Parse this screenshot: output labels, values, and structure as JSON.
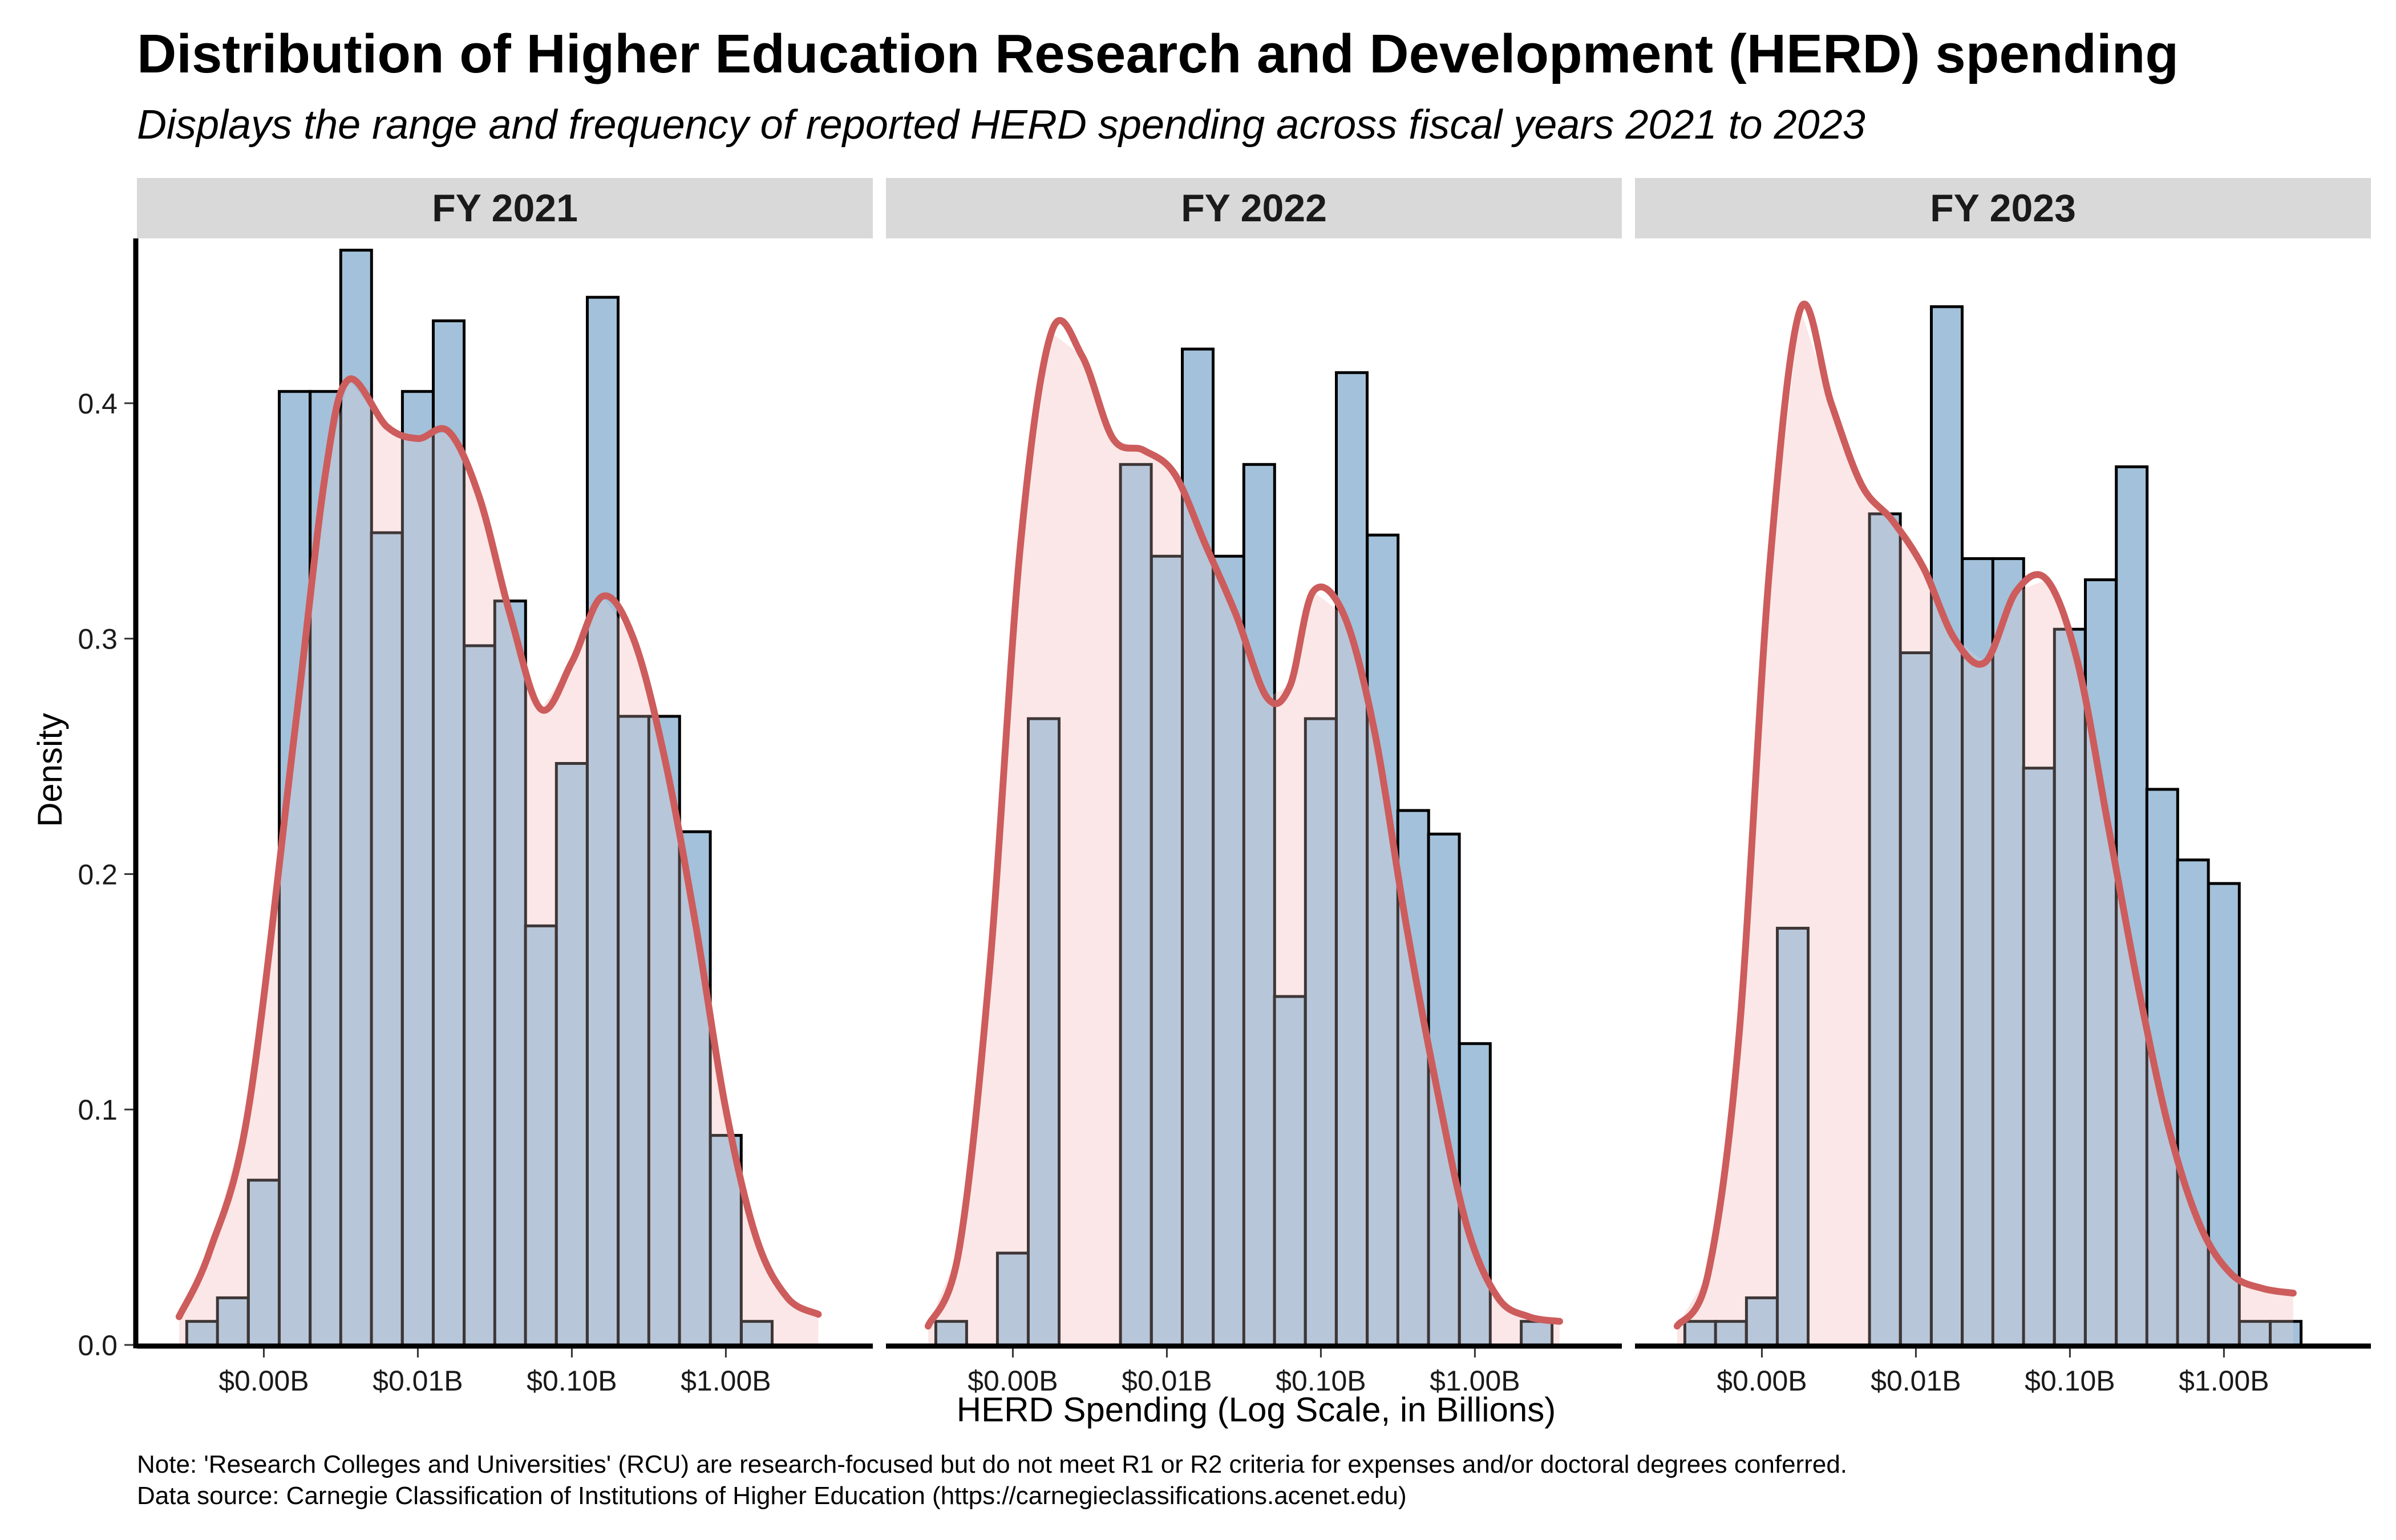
{
  "title": "Distribution of Higher Education Research and Development (HERD) spending",
  "subtitle": "Displays the range and frequency of reported HERD spending across fiscal years 2021 to 2023",
  "caption": {
    "line1": "Note: 'Research Colleges and Universities' (RCU) are research-focused but do not meet R1 or R2 criteria for expenses and/or doctoral degrees conferred.",
    "line2": "Data source: Carnegie Classification of Institutions of Higher Education (https://carnegieclassifications.acenet.edu)"
  },
  "colors": {
    "bar_fill": "#a3c1da",
    "bar_stroke": "#000000",
    "density_line": "#cd5c5c",
    "density_fill": "#f9d6d6",
    "strip_background": "#d9d9d9"
  },
  "chart_data": {
    "type": "histogram-with-density",
    "facet_by": "fiscal year",
    "xlabel": "HERD Spending (Log Scale, in Billions)",
    "ylabel": "Density",
    "x_scale": "log10",
    "x_unit": "billions USD",
    "xlim": [
      0.00015,
      9
    ],
    "ylim": [
      0,
      0.47
    ],
    "x_ticks": [
      0.001,
      0.01,
      0.1,
      1
    ],
    "x_tick_labels": [
      "$0.00B",
      "$0.01B",
      "$0.10B",
      "$1.00B"
    ],
    "y_ticks": [
      0,
      0.1,
      0.2,
      0.3,
      0.4
    ],
    "y_tick_labels": [
      "0.0",
      "0.1",
      "0.2",
      "0.3",
      "0.4"
    ],
    "grid": false,
    "bin_width_log10": 0.2,
    "facets": [
      {
        "label": "FY 2021",
        "bin_starts": [
          0.000316,
          0.0005,
          0.000794,
          0.00126,
          0.002,
          0.00316,
          0.005,
          0.00794,
          0.0126,
          0.02,
          0.0316,
          0.05,
          0.0794,
          0.126,
          0.2,
          0.316,
          0.5,
          0.794,
          1.26,
          2.0
        ],
        "density": [
          0.01,
          0.02,
          0.07,
          0.405,
          0.405,
          0.465,
          0.345,
          0.405,
          0.435,
          0.297,
          0.316,
          0.178,
          0.247,
          0.445,
          0.267,
          0.267,
          0.218,
          0.089,
          0.01,
          null
        ],
        "density_curve": {
          "log10_x": [
            -3.55,
            -3.35,
            -3.1,
            -2.8,
            -2.6,
            -2.45,
            -2.2,
            -2.0,
            -1.8,
            -1.6,
            -1.4,
            -1.2,
            -1.0,
            -0.8,
            -0.6,
            -0.4,
            -0.2,
            0.0,
            0.2,
            0.4,
            0.6
          ],
          "density": [
            0.012,
            0.04,
            0.1,
            0.26,
            0.37,
            0.41,
            0.39,
            0.385,
            0.388,
            0.36,
            0.31,
            0.27,
            0.29,
            0.318,
            0.3,
            0.25,
            0.18,
            0.1,
            0.045,
            0.02,
            0.013
          ]
        }
      },
      {
        "label": "FY 2022",
        "bin_starts": [
          0.000316,
          0.0005,
          0.000794,
          0.00126,
          0.002,
          0.00316,
          0.005,
          0.00794,
          0.0126,
          0.02,
          0.0316,
          0.05,
          0.0794,
          0.126,
          0.2,
          0.316,
          0.5,
          0.794,
          1.26,
          2.0
        ],
        "density": [
          0.01,
          null,
          0.039,
          0.266,
          null,
          null,
          0.374,
          0.335,
          0.423,
          0.335,
          0.374,
          0.148,
          0.266,
          0.413,
          0.344,
          0.227,
          0.217,
          0.128,
          null,
          0.01
        ],
        "density_curve": {
          "log10_x": [
            -3.55,
            -3.35,
            -3.15,
            -2.95,
            -2.75,
            -2.55,
            -2.35,
            -2.15,
            -1.95,
            -1.75,
            -1.55,
            -1.35,
            -1.2,
            -1.05,
            -0.85,
            -0.65,
            -0.45,
            -0.25,
            -0.05,
            0.15,
            0.35,
            0.55
          ],
          "density": [
            0.008,
            0.04,
            0.16,
            0.34,
            0.43,
            0.42,
            0.385,
            0.38,
            0.37,
            0.34,
            0.31,
            0.275,
            0.28,
            0.32,
            0.31,
            0.26,
            0.18,
            0.11,
            0.05,
            0.02,
            0.012,
            0.01
          ]
        }
      },
      {
        "label": "FY 2023",
        "bin_starts": [
          0.000316,
          0.0005,
          0.000794,
          0.00126,
          0.002,
          0.00316,
          0.005,
          0.00794,
          0.0126,
          0.02,
          0.0316,
          0.05,
          0.0794,
          0.126,
          0.2,
          0.316,
          0.5,
          0.794,
          1.26,
          2.0
        ],
        "density": [
          0.01,
          0.01,
          0.02,
          0.177,
          null,
          null,
          0.353,
          0.294,
          0.441,
          0.334,
          0.334,
          0.245,
          0.304,
          0.325,
          0.373,
          0.236,
          0.206,
          0.196,
          0.01,
          0.01
        ],
        "density_curve": {
          "log10_x": [
            -3.55,
            -3.35,
            -3.15,
            -2.95,
            -2.75,
            -2.55,
            -2.35,
            -2.15,
            -1.95,
            -1.75,
            -1.55,
            -1.35,
            -1.15,
            -0.95,
            -0.75,
            -0.55,
            -0.35,
            -0.15,
            0.05,
            0.25,
            0.45
          ],
          "density": [
            0.008,
            0.03,
            0.13,
            0.33,
            0.44,
            0.4,
            0.365,
            0.35,
            0.33,
            0.3,
            0.29,
            0.32,
            0.325,
            0.29,
            0.22,
            0.15,
            0.09,
            0.05,
            0.03,
            0.024,
            0.022
          ]
        }
      }
    ]
  }
}
